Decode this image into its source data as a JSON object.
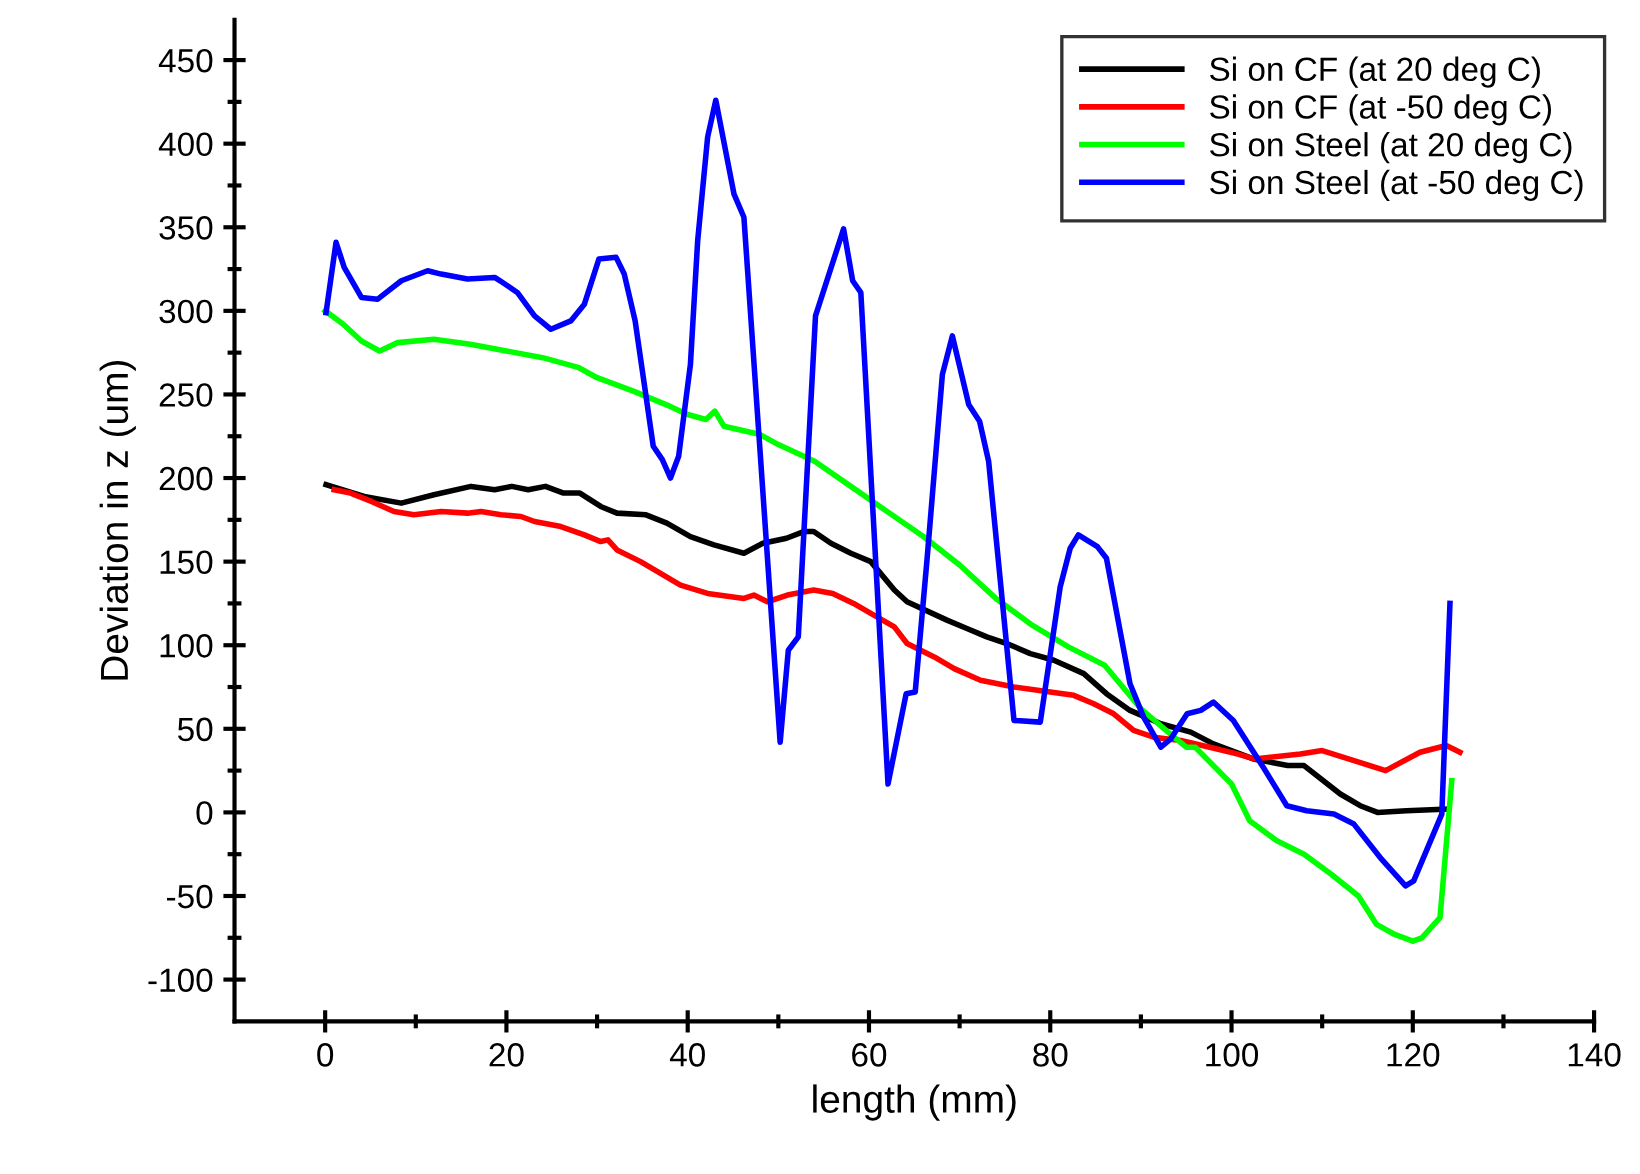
{
  "chart_data": {
    "type": "line",
    "xlabel": "length (mm)",
    "ylabel": "Deviation in z (um)",
    "xlim": [
      -10,
      140
    ],
    "ylim": [
      -125,
      474
    ],
    "xticks": [
      0,
      20,
      40,
      60,
      80,
      100,
      120,
      140
    ],
    "yticks": [
      -100,
      -50,
      0,
      50,
      100,
      150,
      200,
      250,
      300,
      350,
      400,
      450
    ],
    "grid": false,
    "legend": "top right",
    "marker": "none",
    "line_style": "solid",
    "series": [
      {
        "name": "Si on CF (at 20 deg C)",
        "color": "#000000",
        "x": [
          0.1,
          4.3,
          8.4,
          12,
          16.1,
          18.7,
          20.6,
          22.4,
          24.3,
          26.3,
          28.1,
          30.4,
          32.2,
          35.4,
          37.7,
          40.3,
          42.9,
          46.2,
          48.3,
          50.9,
          52.8,
          53.9,
          55.8,
          58,
          60.2,
          62.8,
          64.2,
          68.6,
          70.8,
          73,
          75.2,
          77.8,
          80.4,
          83.7,
          86.2,
          88.8,
          92.2,
          95.5,
          98,
          102.4,
          106.2,
          108,
          112,
          114.2,
          116.1,
          119.3,
          123.7
        ],
        "values": [
          196,
          189,
          185,
          190,
          195,
          193,
          195,
          193,
          195,
          191,
          191,
          183,
          179,
          178,
          173,
          165,
          160,
          155,
          161,
          164,
          168,
          168,
          161,
          155,
          150,
          133,
          126,
          115,
          110,
          105,
          101,
          95,
          91,
          83,
          71,
          61,
          53,
          48,
          41,
          32,
          28,
          28,
          11,
          4,
          0,
          1,
          2
        ]
      },
      {
        "name": "Si on CF (at -50 deg C)",
        "color": "#ff0000",
        "x": [
          1,
          2.8,
          5.1,
          7.6,
          9.8,
          12.8,
          15.7,
          17.2,
          19.4,
          21.6,
          23.1,
          26,
          28.6,
          30.4,
          31.2,
          32.2,
          34.8,
          37,
          39.2,
          42.2,
          46.2,
          47.3,
          48.8,
          51,
          53.9,
          56,
          58.3,
          60.2,
          62.8,
          64.2,
          67.2,
          69.4,
          72.3,
          76,
          80,
          82.6,
          84.8,
          87,
          89.2,
          91.4,
          94.4,
          97.6,
          100.6,
          102.5,
          107.6,
          110,
          117,
          120.8,
          123.7,
          125.2
        ],
        "values": [
          193,
          191,
          186,
          180,
          178,
          180,
          179,
          180,
          178,
          177,
          174,
          171,
          166,
          162,
          163,
          157,
          150,
          143,
          136,
          131,
          128,
          130,
          126,
          130,
          133,
          131,
          125,
          119,
          111,
          101,
          93,
          86,
          79,
          75,
          72,
          70,
          65,
          59,
          49,
          45,
          43,
          39,
          35,
          32,
          35,
          37,
          25,
          36,
          40,
          36
        ]
      },
      {
        "name": "Si on Steel (at 20 deg C)",
        "color": "#00ff00",
        "x": [
          0,
          2,
          4,
          6,
          8,
          12,
          16,
          20,
          24,
          28,
          30,
          34,
          38,
          40,
          42,
          43,
          44,
          48,
          50,
          54,
          58,
          62,
          66,
          70,
          74,
          78,
          82,
          86,
          90,
          93,
          95,
          96,
          100,
          102,
          105,
          108,
          111,
          114,
          116,
          118,
          120,
          121,
          123,
          124.3
        ],
        "values": [
          300,
          292,
          282,
          276,
          281,
          283,
          280,
          276,
          272,
          266,
          260,
          252,
          243,
          238,
          235,
          240,
          231,
          226,
          220,
          210,
          195,
          180,
          165,
          148,
          128,
          112,
          99,
          88,
          62,
          48,
          39,
          39,
          17,
          -5,
          -17,
          -25,
          -37,
          -50,
          -67,
          -73,
          -77,
          -75,
          -63,
          19
        ]
      },
      {
        "name": "Si on Steel (at -50 deg C)",
        "color": "#0000ff",
        "x": [
          0.1,
          1.2,
          2.1,
          4,
          5.8,
          8.4,
          11.3,
          12.8,
          15.7,
          18.7,
          19.3,
          21.2,
          23.1,
          24.9,
          27.1,
          28.6,
          30.2,
          32.1,
          33,
          34.2,
          36.2,
          37.2,
          38.1,
          39,
          40.3,
          41.1,
          42.2,
          43.1,
          45.1,
          46.2,
          50.2,
          51.1,
          52.2,
          54.1,
          57.2,
          58.2,
          59.1,
          62.1,
          64.1,
          65.1,
          66.4,
          68.1,
          69.2,
          71,
          72.2,
          73.2,
          76,
          78.9,
          81.1,
          82.2,
          83.1,
          85.2,
          86.2,
          88.8,
          90.3,
          92.2,
          93.3,
          95.1,
          96.6,
          98,
          100.2,
          103.5,
          106.1,
          108.3,
          111.3,
          113.5,
          116.4,
          119.2,
          120.1,
          123.2,
          124.1
        ],
        "values": [
          299,
          341,
          326,
          308,
          307,
          318,
          324,
          322,
          319,
          320,
          318,
          311,
          297,
          289,
          294,
          304,
          331,
          332,
          322,
          294,
          219,
          211,
          200,
          213,
          268,
          342,
          404,
          426,
          370,
          356,
          42,
          97,
          105,
          297,
          349,
          318,
          311,
          17,
          71,
          72,
          151,
          262,
          285,
          244,
          234,
          210,
          55,
          54,
          135,
          158,
          166,
          159,
          152,
          77,
          57,
          39,
          44,
          59,
          61,
          66,
          55,
          27,
          4,
          1,
          -1,
          -7,
          -27,
          -44,
          -41,
          -1,
          125
        ]
      }
    ]
  }
}
